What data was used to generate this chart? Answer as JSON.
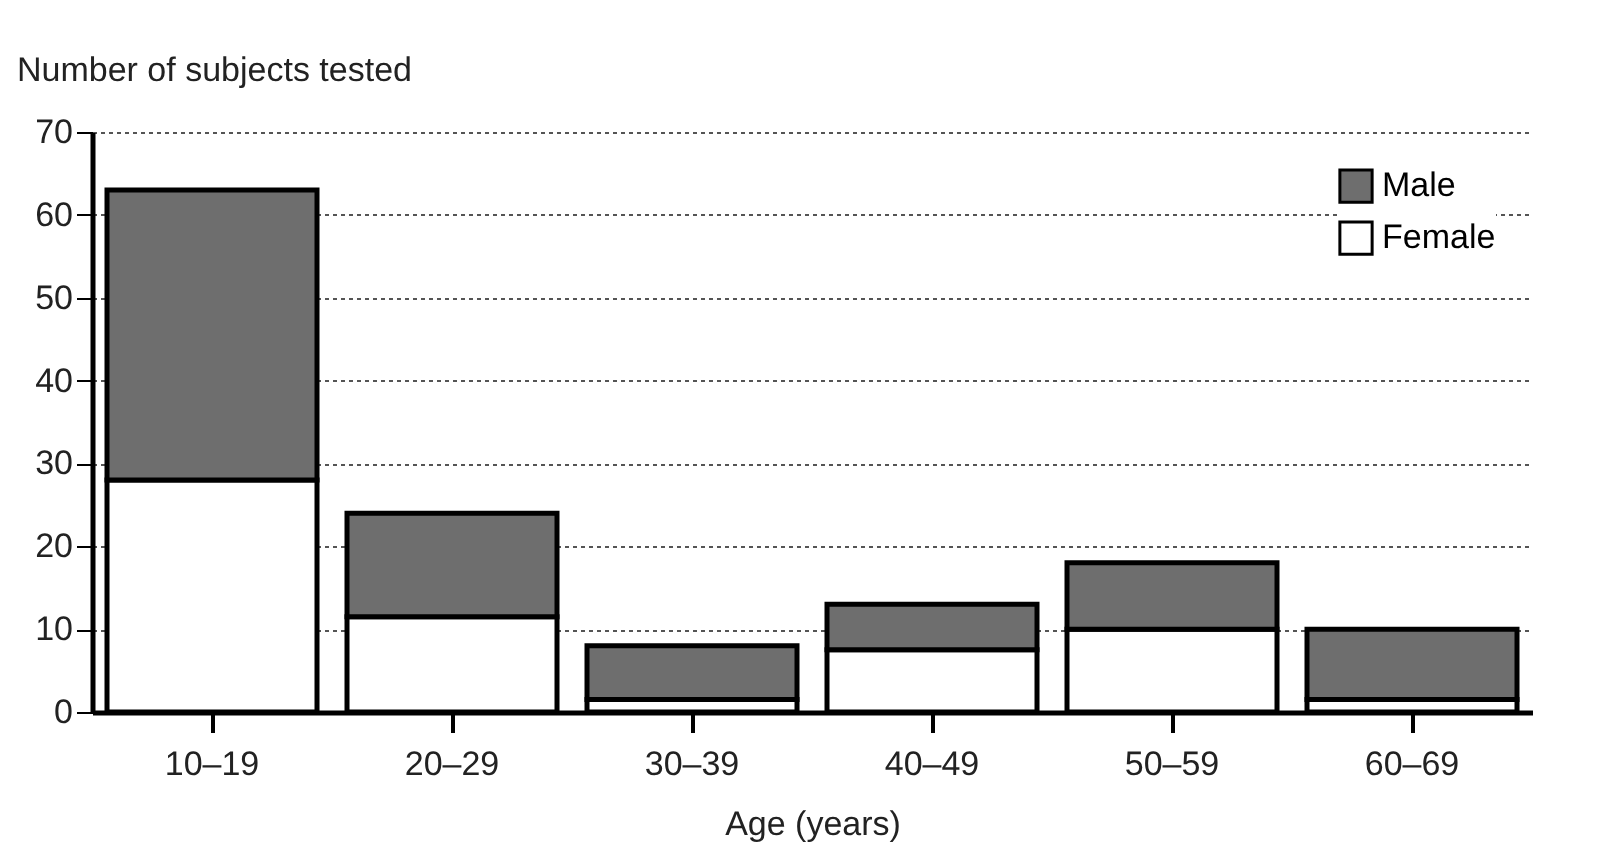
{
  "chart_data": {
    "type": "bar",
    "ylabel": "Number of subjects tested",
    "xlabel": "Age (years)",
    "categories": [
      "10–19",
      "20–29",
      "30–39",
      "40–49",
      "50–59",
      "60–69"
    ],
    "stacked": true,
    "series": [
      {
        "name": "Female",
        "color": "#ffffff",
        "values": [
          28,
          11.5,
          1.5,
          7.5,
          10,
          1.5
        ]
      },
      {
        "name": "Male",
        "color": "#6e6e6e",
        "values": [
          35,
          12.5,
          6.5,
          5.5,
          8,
          8.5
        ]
      }
    ],
    "ylim": [
      0,
      70
    ],
    "yticks": [
      0,
      10,
      20,
      30,
      40,
      50,
      60,
      70
    ],
    "grid": "y",
    "legend": "top right"
  }
}
